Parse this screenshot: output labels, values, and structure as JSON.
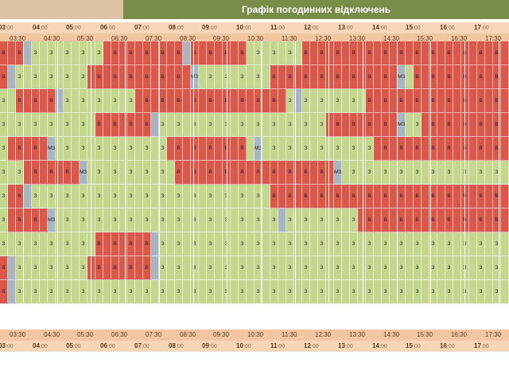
{
  "title": "Графік погодинних відключень",
  "colors": {
    "on": "#c5d68e",
    "off": "#d9584a",
    "maybe": "#a9b5c0",
    "header_bg": "#7a8c4a",
    "hour_band": "#f6d6b6",
    "half_band": "#f1c6a1"
  },
  "hours": [
    {
      "h": "03",
      "m": ":00"
    },
    {
      "h": "04",
      "m": ":00"
    },
    {
      "h": "05",
      "m": ":00"
    },
    {
      "h": "06",
      "m": ":00"
    },
    {
      "h": "07",
      "m": ":00"
    },
    {
      "h": "08",
      "m": ":00"
    },
    {
      "h": "09",
      "m": ":00"
    },
    {
      "h": "10",
      "m": ":00"
    },
    {
      "h": "11",
      "m": ":00"
    },
    {
      "h": "12",
      "m": ":00"
    },
    {
      "h": "13",
      "m": ":00"
    },
    {
      "h": "14",
      "m": ":00"
    },
    {
      "h": "15",
      "m": ":00"
    },
    {
      "h": "16",
      "m": ":00"
    },
    {
      "h": "17",
      "m": ":00"
    }
  ],
  "half_hours": [
    "03:30",
    "04:30",
    "05:30",
    "06:30",
    "07:30",
    "08:30",
    "09:30",
    "10:30",
    "11:30",
    "12:30",
    "13:30",
    "14:30",
    "15:30",
    "16:30",
    "17:30"
  ],
  "cell_labels": {
    "on": "З",
    "off": "В",
    "maybe": "МЗ"
  },
  "rows": [
    "BBBMZZZZZZZZZBBBBBBBBBBMBBBBBBBZZZZZZZBBBBBBBBBBBBBBBBBBBBBBBBBB",
    "BMZZZZZZZZZBBBBBBBBBBBBBMZZZZZZZZZBBBBBBBBBBBBBBBBMZBBBBBBBBBBBB",
    "ZZBBBBBMZZZZZZZZZBBBBBBBBBBBBBBBBBBBZMZZZZZZZZBBBBBBBBBBBBBBBBBB",
    "ZZZZZZZZZZZZBBBBBBBMZZZZZZZZZZZZZZZZZZZZZBBBBBBBBBMZZBBBBBBBBBBB",
    "ZBBBBBMZZZZZZZZZZZZZZBBBBBBBBBBZMZZZZZZZZZZZZZZBBBBBBBBBBBBBBBBB",
    "ZZZBBBBBBBMZZZZZZZZZZZBBBBBBBBBBBBBBBBBBBBMZZZZZZZZZZZZZZZZZZZZZ",
    "ZBBMZZZZZZZZZZZZZZZZZZZZZZZZZZZZZZBBBBBBBBBBBBBBBBBBBBBBBBBBBBBB",
    "ZBBBBBMZZZZZZZZZZZZZZZZZZZZZZZZZZZZMZZZZZZZZZBBBBBBBBBBBBBBBBBBB",
    "ZZZZZZZZZZZZBBBBBBBMZZZZZZZZZZZZZZZZZZZZZZZZZZZZZZZZZZZZZZZZZZZZ",
    "BMZZZZZZZZZBBBBBBBBMZZZZZZZZZZZZZZZZZZZZZZZZZZZZZZZZZZZZZZZZZZZZ",
    "BMZZZZZZZZZZZZZZZZZZZZZZZZZZZZZZZZZZZZZZZZZZZZZZZZZZZZZZZZZZZZZZ"
  ],
  "legend_note": ""
}
